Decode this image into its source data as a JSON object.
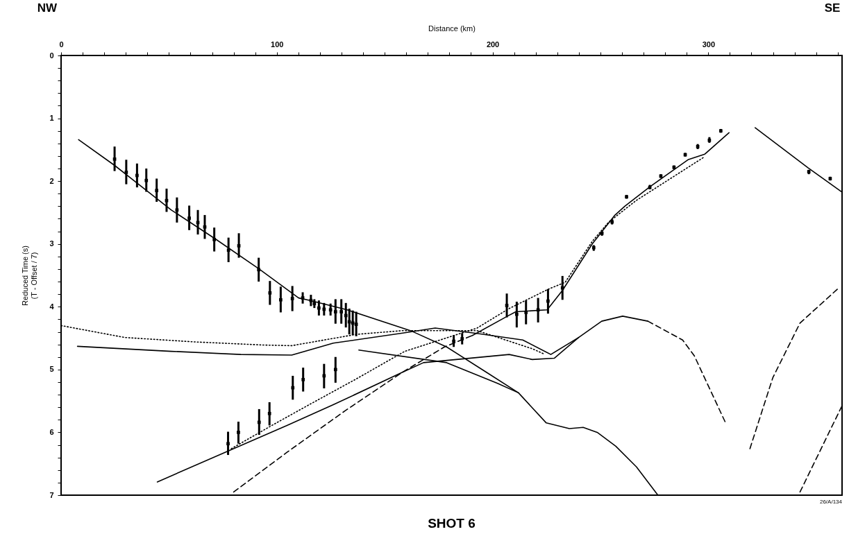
{
  "chart_data": {
    "type": "line",
    "title": "SHOT 6",
    "xlabel": "Distance (km)",
    "ylabel": "Reduced Time (s)\n(T - Offset / 7)",
    "annotations": [
      "NW",
      "SE",
      "26/A/134"
    ],
    "xlim": [
      0,
      362
    ],
    "ylim": [
      7,
      0
    ],
    "xticks": [
      0,
      {
        "value": 10,
        "label": null
      },
      {
        "value": 20,
        "label": null
      },
      {
        "value": 30,
        "label": null
      },
      {
        "value": 40,
        "label": null
      },
      {
        "value": 50,
        "label": null
      },
      {
        "value": 60,
        "label": null
      },
      {
        "value": 70,
        "label": null
      },
      {
        "value": 80,
        "label": null
      },
      {
        "value": 90,
        "label": null
      },
      100,
      {
        "value": 110,
        "label": null
      },
      {
        "value": 120,
        "label": null
      },
      {
        "value": 130,
        "label": null
      },
      {
        "value": 140,
        "label": null
      },
      {
        "value": 150,
        "label": null
      },
      {
        "value": 160,
        "label": null
      },
      {
        "value": 170,
        "label": null
      },
      {
        "value": 180,
        "label": null
      },
      {
        "value": 190,
        "label": null
      },
      200,
      {
        "value": 210,
        "label": null
      },
      {
        "value": 220,
        "label": null
      },
      {
        "value": 230,
        "label": null
      },
      {
        "value": 240,
        "label": null
      },
      {
        "value": 250,
        "label": null
      },
      {
        "value": 260,
        "label": null
      },
      {
        "value": 270,
        "label": null
      },
      {
        "value": 280,
        "label": null
      },
      {
        "value": 290,
        "label": null
      },
      300,
      {
        "value": 310,
        "label": null
      },
      {
        "value": 320,
        "label": null
      },
      {
        "value": 330,
        "label": null
      },
      {
        "value": 340,
        "label": null
      },
      {
        "value": 350,
        "label": null
      },
      {
        "value": 360,
        "label": null
      }
    ],
    "yticks": [
      0,
      {
        "value": 0.2,
        "label": null
      },
      {
        "value": 0.4,
        "label": null
      },
      {
        "value": 0.6,
        "label": null
      },
      {
        "value": 0.8,
        "label": null
      },
      1,
      {
        "value": 1.2,
        "label": null
      },
      {
        "value": 1.4,
        "label": null
      },
      {
        "value": 1.6,
        "label": null
      },
      {
        "value": 1.8,
        "label": null
      },
      2,
      {
        "value": 2.2,
        "label": null
      },
      {
        "value": 2.4,
        "label": null
      },
      {
        "value": 2.6,
        "label": null
      },
      {
        "value": 2.8,
        "label": null
      },
      3,
      {
        "value": 3.2,
        "label": null
      },
      {
        "value": 3.4,
        "label": null
      },
      {
        "value": 3.6,
        "label": null
      },
      {
        "value": 3.8,
        "label": null
      },
      4,
      {
        "value": 4.2,
        "label": null
      },
      {
        "value": 4.4,
        "label": null
      },
      {
        "value": 4.6,
        "label": null
      },
      {
        "value": 4.8,
        "label": null
      },
      5,
      {
        "value": 5.2,
        "label": null
      },
      {
        "value": 5.4,
        "label": null
      },
      {
        "value": 5.6,
        "label": null
      },
      {
        "value": 5.8,
        "label": null
      },
      6,
      {
        "value": 6.2,
        "label": null
      },
      {
        "value": 6.4,
        "label": null
      },
      {
        "value": 6.6,
        "label": null
      },
      {
        "value": 6.8,
        "label": null
      },
      7
    ],
    "grid": false,
    "line_style": "solid",
    "series": [
      {
        "type": "line",
        "color": "#000000",
        "x": [
          8.1,
          24.8,
          51.1,
          71.5,
          91.8,
          110.1,
          115.4,
          132.6,
          162.6,
          178.7,
          197.0,
          212.0,
          224.9,
          235.6,
          242.0,
          248.5,
          257.1,
          266.7,
          276.4
        ],
        "values": [
          1.34,
          1.75,
          2.46,
          2.92,
          3.4,
          3.86,
          3.9,
          4.05,
          4.39,
          4.64,
          5.04,
          5.37,
          5.85,
          5.94,
          5.92,
          6.0,
          6.22,
          6.55,
          6.99
        ]
      },
      {
        "type": "line",
        "color": "#000000",
        "x": [
          138.0,
          178.7,
          202.3,
          212.0
        ],
        "values": [
          4.69,
          4.89,
          5.22,
          5.37
        ]
      },
      {
        "type": "line",
        "color": "#000000",
        "x": [
          7.6,
          51.1,
          83.3,
          106.9,
          126.2,
          158.4,
          173.4,
          193.8,
          214.0,
          227.0,
          239.9,
          250.6,
          260.3,
          272.0
        ],
        "values": [
          4.63,
          4.71,
          4.76,
          4.77,
          4.58,
          4.42,
          4.34,
          4.43,
          4.53,
          4.76,
          4.49,
          4.23,
          4.15,
          4.23
        ]
      },
      {
        "type": "line",
        "color": "#000000",
        "line_style": "dashed",
        "x": [
          272.0,
          288.1,
          293.5,
          308.3
        ],
        "values": [
          4.23,
          4.53,
          4.78,
          5.87
        ]
      },
      {
        "type": "line",
        "color": "#000000",
        "x": [
          44.6,
          77.9,
          104.7,
          126.2,
          158.4,
          168.0,
          207.7,
          218.4,
          228.6,
          239.9
        ],
        "values": [
          6.79,
          6.29,
          5.89,
          5.56,
          5.04,
          4.89,
          4.76,
          4.84,
          4.82,
          4.49
        ]
      },
      {
        "type": "line",
        "color": "#000000",
        "line_style": "dashed",
        "x": [
          80.0,
          104.6,
          131.5,
          158.4,
          177.7,
          190.5
        ],
        "values": [
          6.95,
          6.32,
          5.66,
          5.04,
          4.64,
          4.46
        ]
      },
      {
        "type": "line",
        "color": "#000000",
        "x": [
          190.5,
          206.9,
          210.8,
          225.3,
          232.4,
          246.2,
          256.5,
          261.3,
          272.9,
          290.6,
          298.4,
          309.6
        ],
        "values": [
          4.46,
          4.15,
          4.08,
          4.05,
          3.74,
          3.0,
          2.55,
          2.4,
          2.09,
          1.66,
          1.57,
          1.23
        ]
      },
      {
        "type": "line",
        "color": "#000000",
        "line_style": "dotted",
        "x": [
          78.9,
          98.2,
          115.5,
          136.8,
          159.3,
          192.8,
          207.6,
          225.9,
          233.7,
          246.2,
          253.9,
          266.5,
          298.4
        ],
        "values": [
          6.26,
          5.88,
          5.55,
          5.15,
          4.71,
          4.34,
          4.03,
          3.72,
          3.61,
          2.96,
          2.65,
          2.31,
          1.61
        ]
      },
      {
        "type": "line",
        "color": "#000000",
        "line_style": "dotted",
        "x": [
          0,
          29.6,
          61.8,
          94.0,
          106.9,
          136.8,
          158.4,
          192.8,
          218.5,
          223.7
        ],
        "values": [
          4.3,
          4.49,
          4.56,
          4.61,
          4.62,
          4.44,
          4.38,
          4.38,
          4.67,
          4.75
        ]
      },
      {
        "type": "line",
        "color": "#000000",
        "x": [
          321.7,
          346.3,
          361.8
        ],
        "values": [
          1.15,
          1.79,
          2.17
        ]
      },
      {
        "type": "line",
        "color": "#000000",
        "line_style": "dashed",
        "x": [
          319.3,
          329.9,
          342.5,
          360.5
        ],
        "values": [
          6.26,
          5.13,
          4.26,
          3.7
        ]
      },
      {
        "type": "line",
        "color": "#000000",
        "line_style": "dashed",
        "x": [
          342.5,
          361.8
        ],
        "values": [
          6.95,
          5.59
        ]
      },
      {
        "type": "scatter",
        "color": "#000000",
        "x": [
          24.8,
          30.2,
          35.2,
          39.5,
          44.3,
          48.9,
          53.7,
          59.4,
          63.4,
          66.6,
          71.0,
          77.6,
          82.4,
          91.6,
          96.8,
          101.8,
          107.2,
          112.0,
          115.8,
          117.4,
          119.5,
          121.9,
          124.9,
          127.2,
          129.9,
          132.0,
          133.6,
          135.2,
          136.8,
          77.4,
          82.2,
          91.8,
          96.6,
          107.4,
          112.2,
          121.9,
          127.2,
          182.0,
          185.9,
          206.6,
          211.2,
          215.5,
          221.1,
          225.7,
          232.4,
          246.9,
          250.7,
          255.4,
          262.1,
          272.9,
          278.0,
          284.1,
          289.3,
          295.1,
          300.5,
          305.8,
          346.6,
          356.5
        ],
        "values": [
          1.65,
          1.86,
          1.91,
          1.99,
          2.15,
          2.31,
          2.46,
          2.59,
          2.66,
          2.73,
          2.93,
          3.1,
          3.03,
          3.41,
          3.78,
          3.89,
          3.87,
          3.86,
          3.9,
          3.95,
          4.02,
          4.04,
          4.05,
          4.08,
          4.08,
          4.14,
          4.24,
          4.26,
          4.28,
          6.18,
          6.0,
          5.84,
          5.7,
          5.29,
          5.16,
          5.1,
          5.0,
          4.55,
          4.51,
          3.98,
          4.12,
          4.09,
          4.05,
          3.91,
          3.7,
          3.06,
          2.83,
          2.65,
          2.25,
          2.1,
          1.92,
          1.78,
          1.58,
          1.45,
          1.35,
          1.2,
          1.85,
          1.96
        ],
        "errors": [
          [
            1.45,
            1.84
          ],
          [
            1.66,
            2.05
          ],
          [
            1.72,
            2.1
          ],
          [
            1.8,
            2.17
          ],
          [
            1.96,
            2.33
          ],
          [
            2.12,
            2.49
          ],
          [
            2.26,
            2.66
          ],
          [
            2.39,
            2.78
          ],
          [
            2.46,
            2.85
          ],
          [
            2.54,
            2.92
          ],
          [
            2.74,
            3.12
          ],
          [
            2.9,
            3.29
          ],
          [
            2.83,
            3.22
          ],
          [
            3.22,
            3.6
          ],
          [
            3.59,
            3.97
          ],
          [
            3.68,
            4.09
          ],
          [
            3.67,
            4.07
          ],
          [
            3.77,
            3.95
          ],
          [
            3.81,
            3.99
          ],
          [
            3.88,
            4.02
          ],
          [
            3.9,
            4.14
          ],
          [
            3.94,
            4.14
          ],
          [
            3.95,
            4.14
          ],
          [
            3.88,
            4.27
          ],
          [
            3.88,
            4.27
          ],
          [
            3.94,
            4.33
          ],
          [
            4.03,
            4.44
          ],
          [
            4.06,
            4.45
          ],
          [
            4.08,
            4.47
          ],
          [
            5.99,
            6.36
          ],
          [
            5.83,
            6.18
          ],
          [
            5.63,
            6.04
          ],
          [
            5.52,
            5.89
          ],
          [
            5.1,
            5.48
          ],
          [
            4.97,
            5.35
          ],
          [
            4.91,
            5.3
          ],
          [
            4.8,
            5.21
          ],
          [
            4.45,
            4.64
          ],
          [
            4.42,
            4.6
          ],
          [
            3.79,
            4.17
          ],
          [
            3.92,
            4.33
          ],
          [
            3.9,
            4.28
          ],
          [
            3.86,
            4.25
          ],
          [
            3.72,
            4.11
          ],
          [
            3.51,
            3.89
          ],
          [
            3.02,
            3.11
          ],
          [
            2.8,
            2.87
          ],
          [
            2.61,
            2.69
          ],
          [
            2.22,
            2.28
          ],
          [
            2.06,
            2.13
          ],
          [
            1.89,
            1.95
          ],
          [
            1.75,
            1.81
          ],
          [
            1.55,
            1.61
          ],
          [
            1.41,
            1.49
          ],
          [
            1.3,
            1.39
          ],
          [
            1.17,
            1.23
          ],
          [
            1.82,
            1.89
          ],
          [
            1.93,
            1.99
          ]
        ]
      }
    ]
  }
}
